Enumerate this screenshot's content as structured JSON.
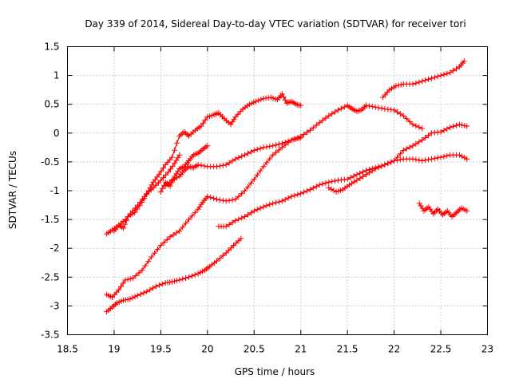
{
  "chart_data": {
    "type": "scatter",
    "title": "Day 339 of 2014, Sidereal Day-to-day VTEC variation (SDTVAR) for receiver tori",
    "xlabel": "GPS time / hours",
    "ylabel": "SDTVAR / TECUs",
    "xlim": [
      18.5,
      23
    ],
    "ylim": [
      -3.5,
      1.5
    ],
    "x_ticks": [
      "18.5",
      "19",
      "19.5",
      "20",
      "20.5",
      "21",
      "21.5",
      "22",
      "22.5",
      "23"
    ],
    "y_ticks": [
      "-3.5",
      "-3",
      "-2.5",
      "-2",
      "-1.5",
      "-1",
      "-0.5",
      "0",
      "0.5",
      "1",
      "1.5"
    ],
    "grid": true,
    "marker": "+",
    "color": "#ff0000",
    "series": [
      {
        "x": [
          18.92,
          18.98,
          19.05,
          19.12,
          19.2,
          19.28,
          19.35,
          19.42,
          19.5,
          19.58,
          19.65,
          19.7
        ],
        "y": [
          -1.75,
          -1.68,
          -1.6,
          -1.5,
          -1.35,
          -1.2,
          -1.05,
          -0.95,
          -0.82,
          -0.68,
          -0.52,
          -0.38
        ]
      },
      {
        "x": [
          19.0,
          19.05,
          19.1,
          19.15,
          19.22,
          19.3,
          19.37,
          19.42,
          19.48,
          19.55,
          19.62,
          19.7,
          19.75,
          19.8,
          19.87,
          19.93,
          20.0,
          20.07,
          20.12,
          20.18,
          20.25,
          20.3,
          20.38,
          20.45,
          20.52,
          20.6,
          20.68,
          20.75,
          20.8,
          20.85,
          20.9,
          20.95,
          21.0
        ],
        "y": [
          -1.7,
          -1.6,
          -1.65,
          -1.45,
          -1.38,
          -1.2,
          -1.0,
          -0.85,
          -0.72,
          -0.55,
          -0.42,
          -0.05,
          0.02,
          -0.05,
          0.05,
          0.12,
          0.28,
          0.32,
          0.35,
          0.25,
          0.15,
          0.28,
          0.42,
          0.5,
          0.55,
          0.6,
          0.62,
          0.58,
          0.68,
          0.52,
          0.55,
          0.5,
          0.48
        ]
      },
      {
        "x": [
          19.5,
          19.55,
          19.6,
          19.65,
          19.7,
          19.75,
          19.8,
          19.85,
          19.9,
          19.95,
          20.0
        ],
        "y": [
          -1.02,
          -0.85,
          -0.92,
          -0.75,
          -0.62,
          -0.58,
          -0.48,
          -0.38,
          -0.35,
          -0.28,
          -0.22
        ]
      },
      {
        "x": [
          18.92,
          18.98,
          19.03,
          19.1,
          19.17,
          19.25,
          19.35,
          19.45,
          19.55,
          19.62,
          19.7,
          19.8,
          19.9,
          19.97,
          20.02,
          20.1,
          20.2,
          20.28,
          20.36
        ],
        "y": [
          -3.1,
          -3.02,
          -2.95,
          -2.9,
          -2.88,
          -2.82,
          -2.75,
          -2.66,
          -2.6,
          -2.58,
          -2.55,
          -2.5,
          -2.44,
          -2.38,
          -2.32,
          -2.22,
          -2.08,
          -1.95,
          -1.83
        ]
      },
      {
        "x": [
          18.92,
          18.98,
          19.05,
          19.12,
          19.2,
          19.3,
          19.4,
          19.5,
          19.6,
          19.7,
          19.8,
          19.9,
          19.95,
          20.0,
          20.1,
          20.2,
          20.3,
          20.4,
          20.5,
          20.6,
          20.7,
          20.8,
          20.9,
          20.95,
          21.0
        ],
        "y": [
          -2.8,
          -2.85,
          -2.72,
          -2.55,
          -2.52,
          -2.38,
          -2.15,
          -1.95,
          -1.8,
          -1.7,
          -1.5,
          -1.32,
          -1.2,
          -1.1,
          -1.15,
          -1.18,
          -1.15,
          -1.0,
          -0.8,
          -0.58,
          -0.38,
          -0.25,
          -0.12,
          -0.1,
          -0.08
        ]
      },
      {
        "x": [
          19.55,
          19.62,
          19.7,
          19.75,
          19.8,
          19.85,
          19.9,
          20.0,
          20.1,
          20.2,
          20.3,
          20.4,
          20.5,
          20.6,
          20.7,
          20.8,
          20.9,
          21.0,
          21.1,
          21.2,
          21.3,
          21.4,
          21.5,
          21.55,
          21.6,
          21.65,
          21.7,
          21.8,
          21.9,
          22.0,
          22.1,
          22.2,
          22.3
        ],
        "y": [
          -0.92,
          -0.82,
          -0.75,
          -0.65,
          -0.58,
          -0.6,
          -0.55,
          -0.58,
          -0.58,
          -0.55,
          -0.45,
          -0.38,
          -0.3,
          -0.25,
          -0.22,
          -0.18,
          -0.12,
          -0.06,
          0.05,
          0.18,
          0.3,
          0.4,
          0.48,
          0.42,
          0.38,
          0.4,
          0.48,
          0.45,
          0.42,
          0.4,
          0.3,
          0.15,
          0.08
        ]
      },
      {
        "x": [
          20.12,
          20.2,
          20.3,
          20.4,
          20.5,
          20.6,
          20.7,
          20.8,
          20.9,
          21.0,
          21.1,
          21.2,
          21.3,
          21.4,
          21.5,
          21.6,
          21.7,
          21.8,
          21.9,
          22.0,
          22.1,
          22.2,
          22.3,
          22.4,
          22.5,
          22.6,
          22.7,
          22.78
        ],
        "y": [
          -1.62,
          -1.62,
          -1.52,
          -1.45,
          -1.35,
          -1.28,
          -1.22,
          -1.18,
          -1.1,
          -1.05,
          -0.98,
          -0.9,
          -0.85,
          -0.82,
          -0.8,
          -0.72,
          -0.65,
          -0.6,
          -0.55,
          -0.48,
          -0.45,
          -0.45,
          -0.48,
          -0.45,
          -0.42,
          -0.38,
          -0.38,
          -0.45
        ]
      },
      {
        "x": [
          21.3,
          21.38,
          21.45,
          21.52,
          21.6,
          21.7,
          21.8,
          21.9,
          22.0,
          22.1,
          22.2,
          22.3,
          22.4,
          22.5,
          22.6,
          22.7,
          22.78
        ],
        "y": [
          -0.95,
          -1.02,
          -0.98,
          -0.9,
          -0.82,
          -0.72,
          -0.62,
          -0.55,
          -0.48,
          -0.3,
          -0.22,
          -0.12,
          0.0,
          0.02,
          0.1,
          0.15,
          0.12
        ]
      },
      {
        "x": [
          21.88,
          21.95,
          22.02,
          22.1,
          22.2,
          22.3,
          22.4,
          22.5,
          22.6,
          22.7,
          22.75
        ],
        "y": [
          0.62,
          0.75,
          0.82,
          0.85,
          0.85,
          0.9,
          0.95,
          1.0,
          1.05,
          1.15,
          1.25
        ]
      },
      {
        "x": [
          22.27,
          22.32,
          22.37,
          22.42,
          22.47,
          22.52,
          22.57,
          22.62,
          22.67,
          22.72,
          22.78
        ],
        "y": [
          -1.22,
          -1.35,
          -1.28,
          -1.4,
          -1.32,
          -1.42,
          -1.35,
          -1.45,
          -1.38,
          -1.3,
          -1.35
        ]
      }
    ]
  }
}
